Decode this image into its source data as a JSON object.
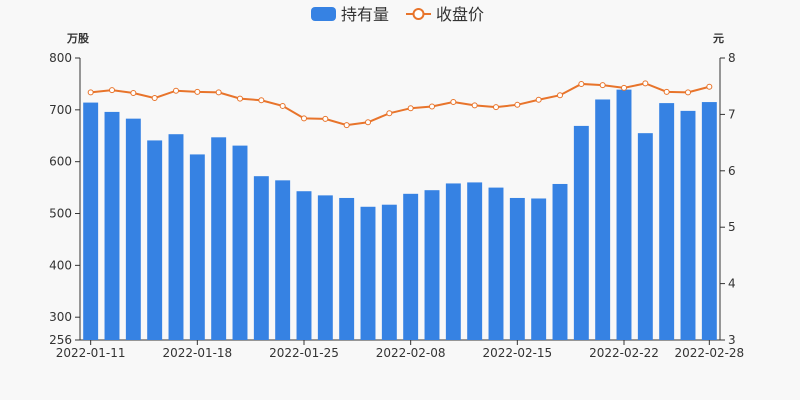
{
  "chart_data": {
    "type": "bar",
    "legend_position": "top-center",
    "grid": false,
    "colors": {
      "bar": "#3682e3",
      "line": "#e8742b",
      "axis": "#333333",
      "background": "#f8f8f8"
    },
    "legend": [
      {
        "name": "持有量",
        "icon": "rounded-rect-icon"
      },
      {
        "name": "收盘价",
        "icon": "line-circle-icon"
      }
    ],
    "y_left": {
      "unit": "万股",
      "min": 256,
      "max": 800,
      "ticks": [
        256,
        300,
        400,
        500,
        600,
        700,
        800
      ]
    },
    "y_right": {
      "unit": "元",
      "min": 3,
      "max": 8,
      "ticks": [
        3,
        4,
        5,
        6,
        7,
        8
      ]
    },
    "x_labels": [
      {
        "index": 0,
        "text": "2022-01-11"
      },
      {
        "index": 5,
        "text": "2022-01-18"
      },
      {
        "index": 10,
        "text": "2022-01-25"
      },
      {
        "index": 15,
        "text": "2022-02-08"
      },
      {
        "index": 20,
        "text": "2022-02-15"
      },
      {
        "index": 25,
        "text": "2022-02-22"
      },
      {
        "index": 29,
        "text": "2022-02-28"
      }
    ],
    "categories": [
      "2022-01-11",
      "2022-01-12",
      "2022-01-13",
      "2022-01-14",
      "2022-01-17",
      "2022-01-18",
      "2022-01-19",
      "2022-01-20",
      "2022-01-21",
      "2022-01-24",
      "2022-01-25",
      "2022-01-26",
      "2022-01-27",
      "2022-01-28",
      "2022-02-07",
      "2022-02-08",
      "2022-02-09",
      "2022-02-10",
      "2022-02-11",
      "2022-02-14",
      "2022-02-15",
      "2022-02-16",
      "2022-02-17",
      "2022-02-18",
      "2022-02-21",
      "2022-02-22",
      "2022-02-23",
      "2022-02-24",
      "2022-02-25",
      "2022-02-28"
    ],
    "series": [
      {
        "name": "持有量",
        "type": "bar",
        "axis": "left",
        "values": [
          714,
          696,
          683,
          641,
          653,
          614,
          647,
          631,
          572,
          564,
          543,
          535,
          530,
          513,
          517,
          538,
          545,
          558,
          560,
          550,
          530,
          529,
          557,
          669,
          720,
          739,
          655,
          713,
          698,
          715
        ]
      },
      {
        "name": "收盘价",
        "type": "line",
        "axis": "right",
        "values": [
          7.39,
          7.43,
          7.38,
          7.29,
          7.42,
          7.4,
          7.39,
          7.28,
          7.25,
          7.15,
          6.93,
          6.92,
          6.81,
          6.86,
          7.02,
          7.11,
          7.14,
          7.22,
          7.16,
          7.13,
          7.17,
          7.26,
          7.34,
          7.54,
          7.52,
          7.47,
          7.55,
          7.4,
          7.39,
          7.49
        ]
      }
    ]
  }
}
